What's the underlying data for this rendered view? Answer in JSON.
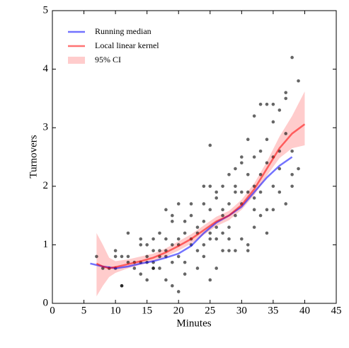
{
  "chart_data": {
    "type": "scatter",
    "xlabel": "Minutes",
    "ylabel": "Turnovers",
    "xlim": [
      0,
      45
    ],
    "xticks": [
      0,
      5,
      10,
      15,
      20,
      25,
      30,
      35,
      40,
      45
    ],
    "ylim": [
      0,
      5
    ],
    "yticks": [
      0,
      1,
      2,
      3,
      4,
      5
    ],
    "legend": "upper left",
    "points": {
      "color": "#000000",
      "x": [
        7,
        8,
        9,
        10,
        10,
        10,
        11,
        11,
        11,
        12,
        12,
        12,
        13,
        13,
        14,
        14,
        14,
        14,
        15,
        15,
        15,
        15,
        16,
        16,
        16,
        16,
        16,
        17,
        17,
        17,
        17,
        18,
        18,
        18,
        18,
        18,
        19,
        19,
        19,
        19,
        19,
        20,
        20,
        20,
        20,
        20,
        21,
        21,
        21,
        21,
        22,
        22,
        22,
        22,
        23,
        23,
        23,
        23,
        24,
        24,
        24,
        24,
        24,
        25,
        25,
        25,
        25,
        25,
        25,
        26,
        26,
        26,
        26,
        26,
        27,
        27,
        27,
        27,
        27,
        28,
        28,
        28,
        28,
        28,
        29,
        29,
        29,
        29,
        29,
        30,
        30,
        30,
        30,
        30,
        31,
        31,
        31,
        31,
        31,
        32,
        32,
        32,
        32,
        32,
        32,
        33,
        33,
        33,
        33,
        33,
        34,
        34,
        34,
        34,
        34,
        35,
        35,
        35,
        35,
        35,
        36,
        36,
        36,
        36,
        37,
        37,
        37,
        37,
        38,
        38,
        38,
        38,
        39,
        39
      ],
      "y": [
        0.8,
        0.6,
        0.6,
        0.6,
        0.9,
        0.8,
        0.3,
        0.3,
        0.8,
        0.7,
        0.8,
        1.2,
        0.7,
        0.6,
        1.0,
        0.7,
        0.5,
        1.1,
        0.4,
        0.7,
        1.0,
        0.8,
        0.6,
        0.6,
        0.7,
        1.1,
        0.9,
        0.8,
        1.2,
        0.6,
        0.9,
        0.8,
        1.6,
        0.9,
        0.4,
        1.1,
        1.0,
        0.7,
        1.4,
        1.5,
        0.3,
        0.2,
        0.8,
        1.1,
        1.0,
        1.7,
        0.5,
        1.2,
        1.4,
        0.7,
        1.5,
        1.1,
        1.0,
        1.7,
        0.9,
        1.2,
        1.3,
        0.6,
        2.0,
        1.0,
        1.4,
        1.7,
        0.8,
        2.7,
        2.0,
        0.4,
        1.6,
        1.2,
        1.1,
        1.8,
        1.1,
        1.9,
        0.6,
        1.3,
        1.6,
        1.5,
        2.0,
        0.9,
        1.2,
        2.2,
        1.7,
        1.3,
        0.9,
        1.1,
        2.0,
        1.9,
        1.5,
        2.3,
        0.9,
        2.4,
        1.9,
        1.1,
        2.5,
        1.7,
        2.8,
        1.9,
        1.0,
        2.2,
        0.9,
        2.5,
        1.8,
        1.3,
        3.2,
        2.0,
        1.6,
        3.4,
        2.6,
        1.5,
        1.9,
        2.2,
        3.4,
        2.8,
        1.2,
        2.4,
        1.6,
        3.1,
        2.5,
        2.0,
        3.4,
        1.6,
        2.3,
        3.3,
        2.6,
        1.9,
        3.6,
        2.9,
        1.7,
        3.5,
        4.2,
        2.2,
        2.0,
        2.6,
        3.8,
        2.3
      ]
    },
    "series": [
      {
        "name": "Running median",
        "color": "#0000ff",
        "x": [
          6,
          8,
          10,
          12,
          14,
          16,
          18,
          20,
          22,
          24,
          26,
          28,
          30,
          32,
          34,
          36,
          38
        ],
        "values": [
          0.68,
          0.63,
          0.6,
          0.63,
          0.68,
          0.72,
          0.78,
          0.85,
          0.98,
          1.2,
          1.38,
          1.5,
          1.65,
          1.9,
          2.15,
          2.35,
          2.5
        ]
      },
      {
        "name": "Local linear kernel",
        "color": "#ff0000",
        "x": [
          7,
          8,
          9,
          10,
          12,
          14,
          16,
          18,
          20,
          22,
          24,
          26,
          28,
          30,
          32,
          34,
          36,
          38,
          40
        ],
        "values": [
          0.68,
          0.63,
          0.6,
          0.62,
          0.67,
          0.72,
          0.78,
          0.87,
          0.98,
          1.1,
          1.25,
          1.4,
          1.5,
          1.68,
          1.95,
          2.3,
          2.65,
          2.9,
          3.06
        ]
      },
      {
        "name": "95% CI",
        "color": "#ff0000",
        "x": [
          7,
          8,
          9,
          10,
          12,
          14,
          16,
          18,
          20,
          22,
          24,
          26,
          28,
          30,
          32,
          34,
          36,
          38,
          40
        ],
        "lower": [
          0.12,
          0.3,
          0.45,
          0.52,
          0.6,
          0.66,
          0.72,
          0.8,
          0.9,
          1.02,
          1.17,
          1.32,
          1.42,
          1.6,
          1.85,
          2.18,
          2.48,
          2.65,
          2.7
        ],
        "upper": [
          1.2,
          1.0,
          0.78,
          0.72,
          0.75,
          0.8,
          0.85,
          0.94,
          1.06,
          1.18,
          1.33,
          1.48,
          1.58,
          1.77,
          2.05,
          2.42,
          2.85,
          3.2,
          3.62
        ]
      }
    ]
  }
}
